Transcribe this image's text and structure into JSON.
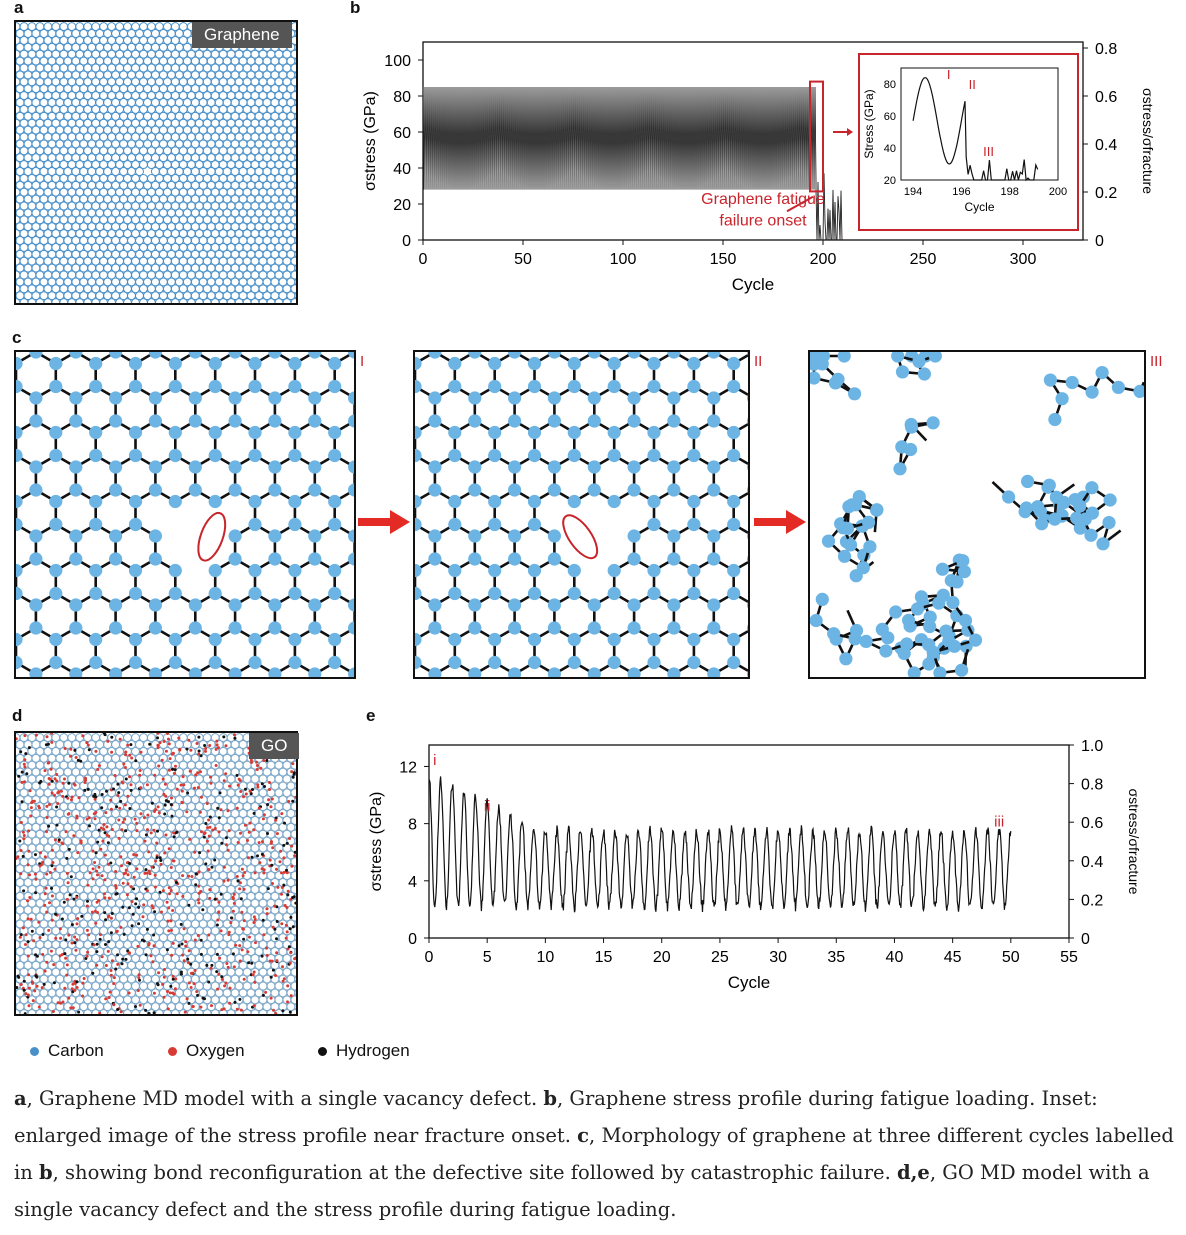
{
  "panels": {
    "a": {
      "label": "a",
      "tag": "Graphene"
    },
    "b": {
      "label": "b"
    },
    "c": {
      "label": "c",
      "stage_labels": [
        "I",
        "II",
        "III"
      ]
    },
    "d": {
      "label": "d",
      "tag": "GO"
    },
    "e": {
      "label": "e"
    }
  },
  "legend": [
    {
      "label": "Carbon",
      "color": "#4a90c8"
    },
    {
      "label": "Oxygen",
      "color": "#d83a34"
    },
    {
      "label": "Hydrogen",
      "color": "#111111"
    }
  ],
  "colors": {
    "carbon": "#6cb4e4",
    "oxygen": "#d83a34",
    "hydrogen": "#111111",
    "annotation": "#c8242b"
  },
  "chart_data": [
    {
      "id": "b",
      "type": "line",
      "xlabel": "Cycle",
      "ylabel": "σstress (GPa)",
      "y2label": "σstress/σfracture",
      "xlim": [
        0,
        330
      ],
      "ylim": [
        0,
        110
      ],
      "y2lim": [
        0,
        0.825
      ],
      "xticks": [
        0,
        50,
        100,
        150,
        200,
        250,
        300
      ],
      "yticks": [
        0,
        20,
        40,
        60,
        80,
        100
      ],
      "y2ticks": [
        0,
        0.2,
        0.4,
        0.6,
        0.8
      ],
      "series": [
        {
          "period": 1,
          "max": 85,
          "min": 28,
          "cycles_until_failure": 197,
          "post_failure_until": 210
        }
      ],
      "annotation": [
        "Graphene fatigue",
        "failure onset"
      ],
      "inset": {
        "xlabel": "Cycle",
        "ylabel": "Stress (GPa)",
        "xlim": [
          193.5,
          200
        ],
        "ylim": [
          20,
          90
        ],
        "xticks": [
          194,
          196,
          198,
          200
        ],
        "yticks": [
          20,
          40,
          60,
          80
        ],
        "markers": [
          "I",
          "II",
          "III"
        ]
      }
    },
    {
      "id": "e",
      "type": "line",
      "xlabel": "Cycle",
      "ylabel": "σstress (GPa)",
      "y2label": "σstress/σfracture",
      "xlim": [
        0,
        55
      ],
      "ylim": [
        0,
        13.5
      ],
      "y2lim": [
        0,
        1.0
      ],
      "xticks": [
        0,
        5,
        10,
        15,
        20,
        25,
        30,
        35,
        40,
        45,
        50,
        55
      ],
      "yticks": [
        0,
        4,
        8,
        12
      ],
      "y2ticks": [
        0,
        0.2,
        0.4,
        0.6,
        0.8,
        1.0
      ],
      "series": [
        {
          "period": 1,
          "peak_start": 11.5,
          "peak_end": 7.5,
          "min": 2.2,
          "cycles": 50
        }
      ],
      "markers": [
        {
          "label": "i",
          "x": 0.5
        },
        {
          "label": "ii",
          "x": 5
        },
        {
          "label": "iii",
          "x": 49
        }
      ]
    }
  ],
  "caption": {
    "a_b": "a",
    "a_text": ", Graphene MD model with a single vacancy defect. ",
    "b": "b",
    "b_text": ", Graphene stress profile during fatigue loading. Inset: enlarged image of the stress profile near fracture onset. ",
    "c": "c",
    "c_text": ", Morphology of graphene at three different cycles labelled in ",
    "c_ref": "b",
    "c_text2": ", showing bond reconfiguration at the defective site followed by catastrophic failure. ",
    "de": "d,e",
    "de_text": ", GO MD model with a single vacancy defect and the stress profile during fatigue loading."
  }
}
